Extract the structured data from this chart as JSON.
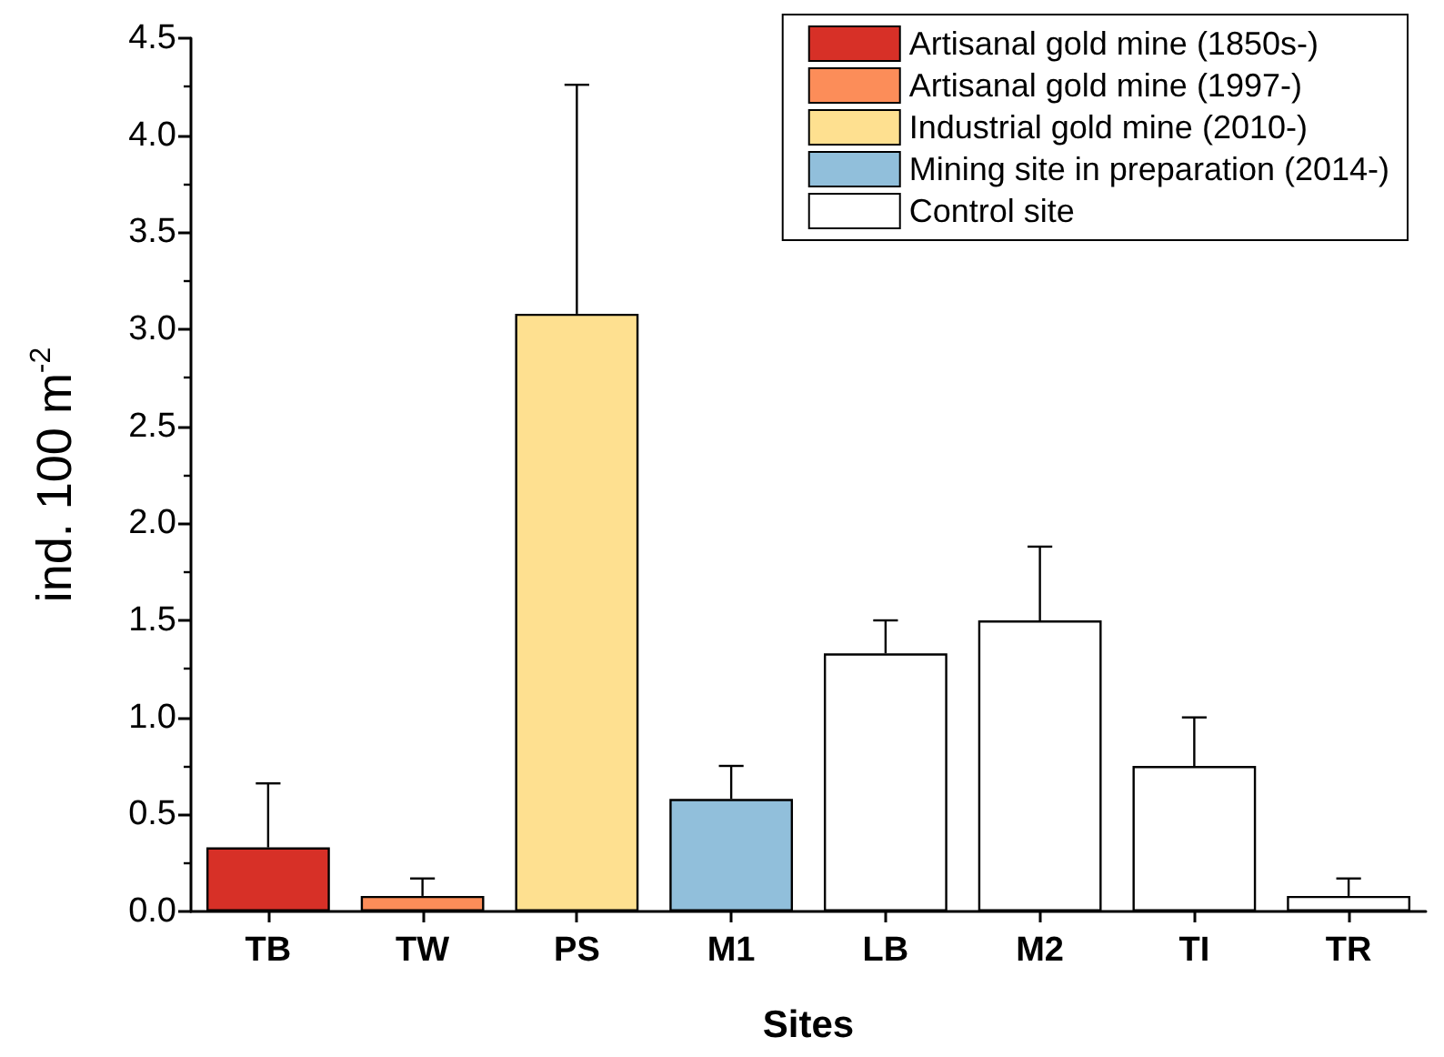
{
  "chart_data": {
    "type": "bar",
    "xlabel": "Sites",
    "ylabel": "ind. 100 m$^{-2}$",
    "categories": [
      "TB",
      "TW",
      "PS",
      "M1",
      "LB",
      "M2",
      "TI",
      "TR"
    ],
    "series": [
      {
        "name": "Artisanal gold mine (1850s-)",
        "color": "#d73027",
        "values": [
          0.33,
          null,
          null,
          null,
          null,
          null,
          null,
          null
        ],
        "errors": [
          [
            0.33,
            0.66
          ],
          null,
          null,
          null,
          null,
          null,
          null,
          null
        ]
      },
      {
        "name": "Artisanal gold mine (1997-)",
        "color": "#fc8d59",
        "values": [
          null,
          0.08,
          null,
          null,
          null,
          null,
          null,
          null
        ],
        "errors": [
          null,
          [
            0.08,
            0.17
          ],
          null,
          null,
          null,
          null,
          null,
          null
        ]
      },
      {
        "name": "Industrial gold mine (2010-)",
        "color": "#fee090",
        "values": [
          null,
          null,
          3.08,
          null,
          null,
          null,
          null,
          null
        ],
        "errors": [
          null,
          null,
          [
            3.08,
            4.26
          ],
          null,
          null,
          null,
          null,
          null
        ]
      },
      {
        "name": "Mining site in preparation (2014-)",
        "color": "#91bfdb",
        "values": [
          null,
          null,
          null,
          0.58,
          null,
          null,
          null,
          null
        ],
        "errors": [
          null,
          null,
          null,
          [
            0.58,
            0.75
          ],
          null,
          null,
          null,
          null
        ]
      },
      {
        "name": "Control site",
        "color": "#ffffff",
        "values": [
          null,
          null,
          null,
          null,
          1.33,
          1.5,
          0.75,
          0.08
        ],
        "errors": [
          null,
          null,
          null,
          null,
          [
            1.33,
            1.5
          ],
          [
            1.5,
            1.88
          ],
          [
            0.75,
            1.0
          ],
          [
            0.08,
            0.17
          ]
        ]
      }
    ],
    "ylim": [
      0,
      4.5
    ],
    "yticks": [
      {
        "value": 0,
        "label": "0.0"
      },
      {
        "value": 0.5,
        "label": "0.5"
      },
      {
        "value": 1,
        "label": "1.0"
      },
      {
        "value": 1.5,
        "label": "1.5"
      },
      {
        "value": 2,
        "label": "2.0"
      },
      {
        "value": 2.5,
        "label": "2.5"
      },
      {
        "value": 3,
        "label": "3.0"
      },
      {
        "value": 3.5,
        "label": "3.5"
      },
      {
        "value": 4,
        "label": "4.0"
      },
      {
        "value": 4.5,
        "label": "4.5"
      }
    ],
    "grid": false,
    "legend": "top right"
  }
}
